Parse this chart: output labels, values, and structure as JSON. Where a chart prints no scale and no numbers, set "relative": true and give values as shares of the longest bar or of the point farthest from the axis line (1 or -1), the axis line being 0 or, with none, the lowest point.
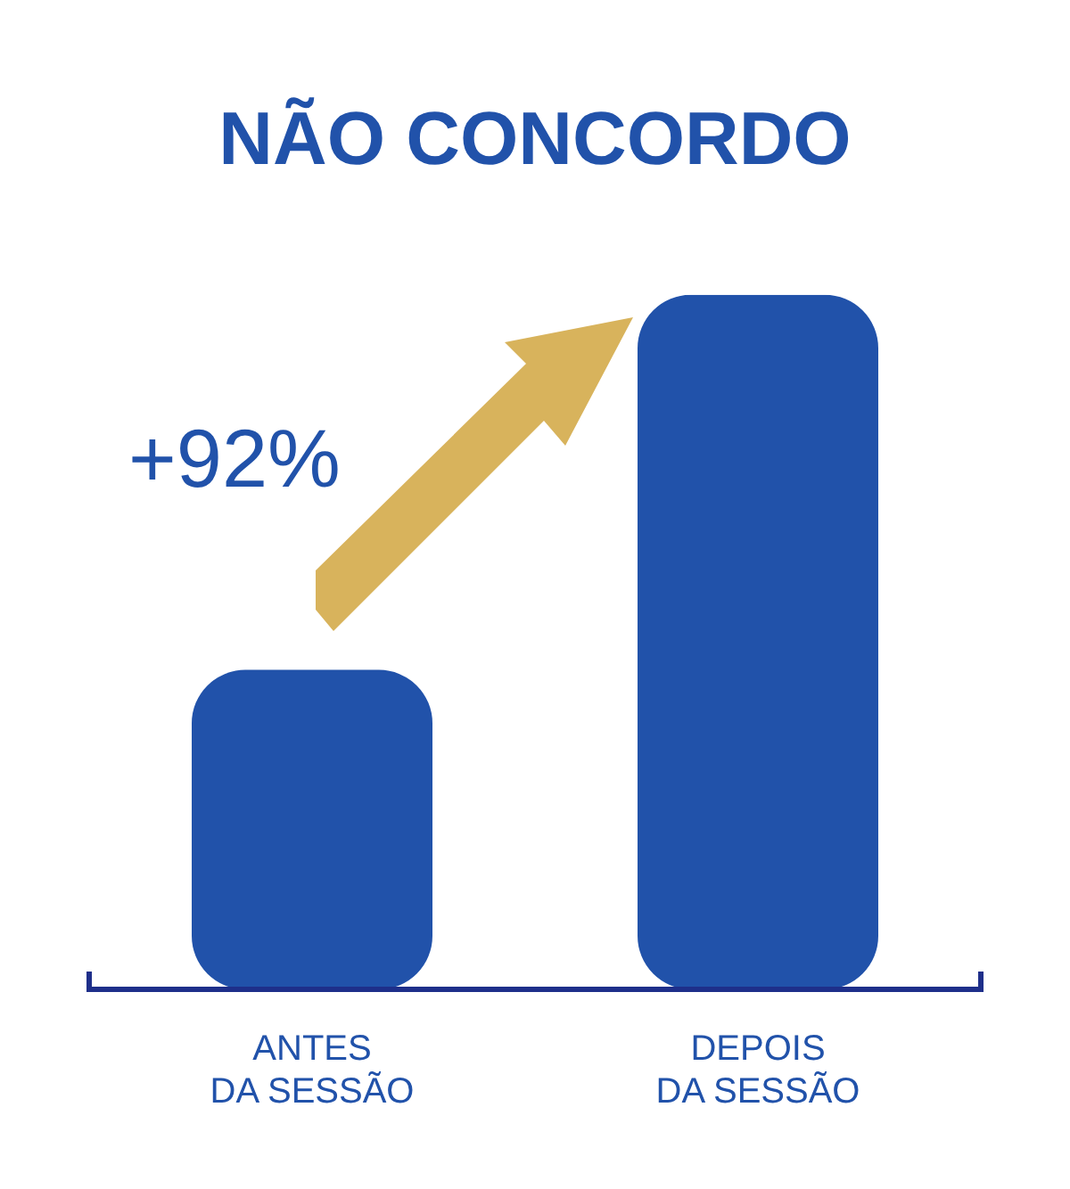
{
  "chart_data": {
    "type": "bar",
    "title": "NÃO CONCORDO",
    "relative": true,
    "categories": [
      "ANTES DA SESSÃO",
      "DEPOIS DA SESSÃO"
    ],
    "values": [
      0.46,
      1
    ],
    "color": "#2152aa",
    "annotations": [
      "+92%"
    ]
  }
}
